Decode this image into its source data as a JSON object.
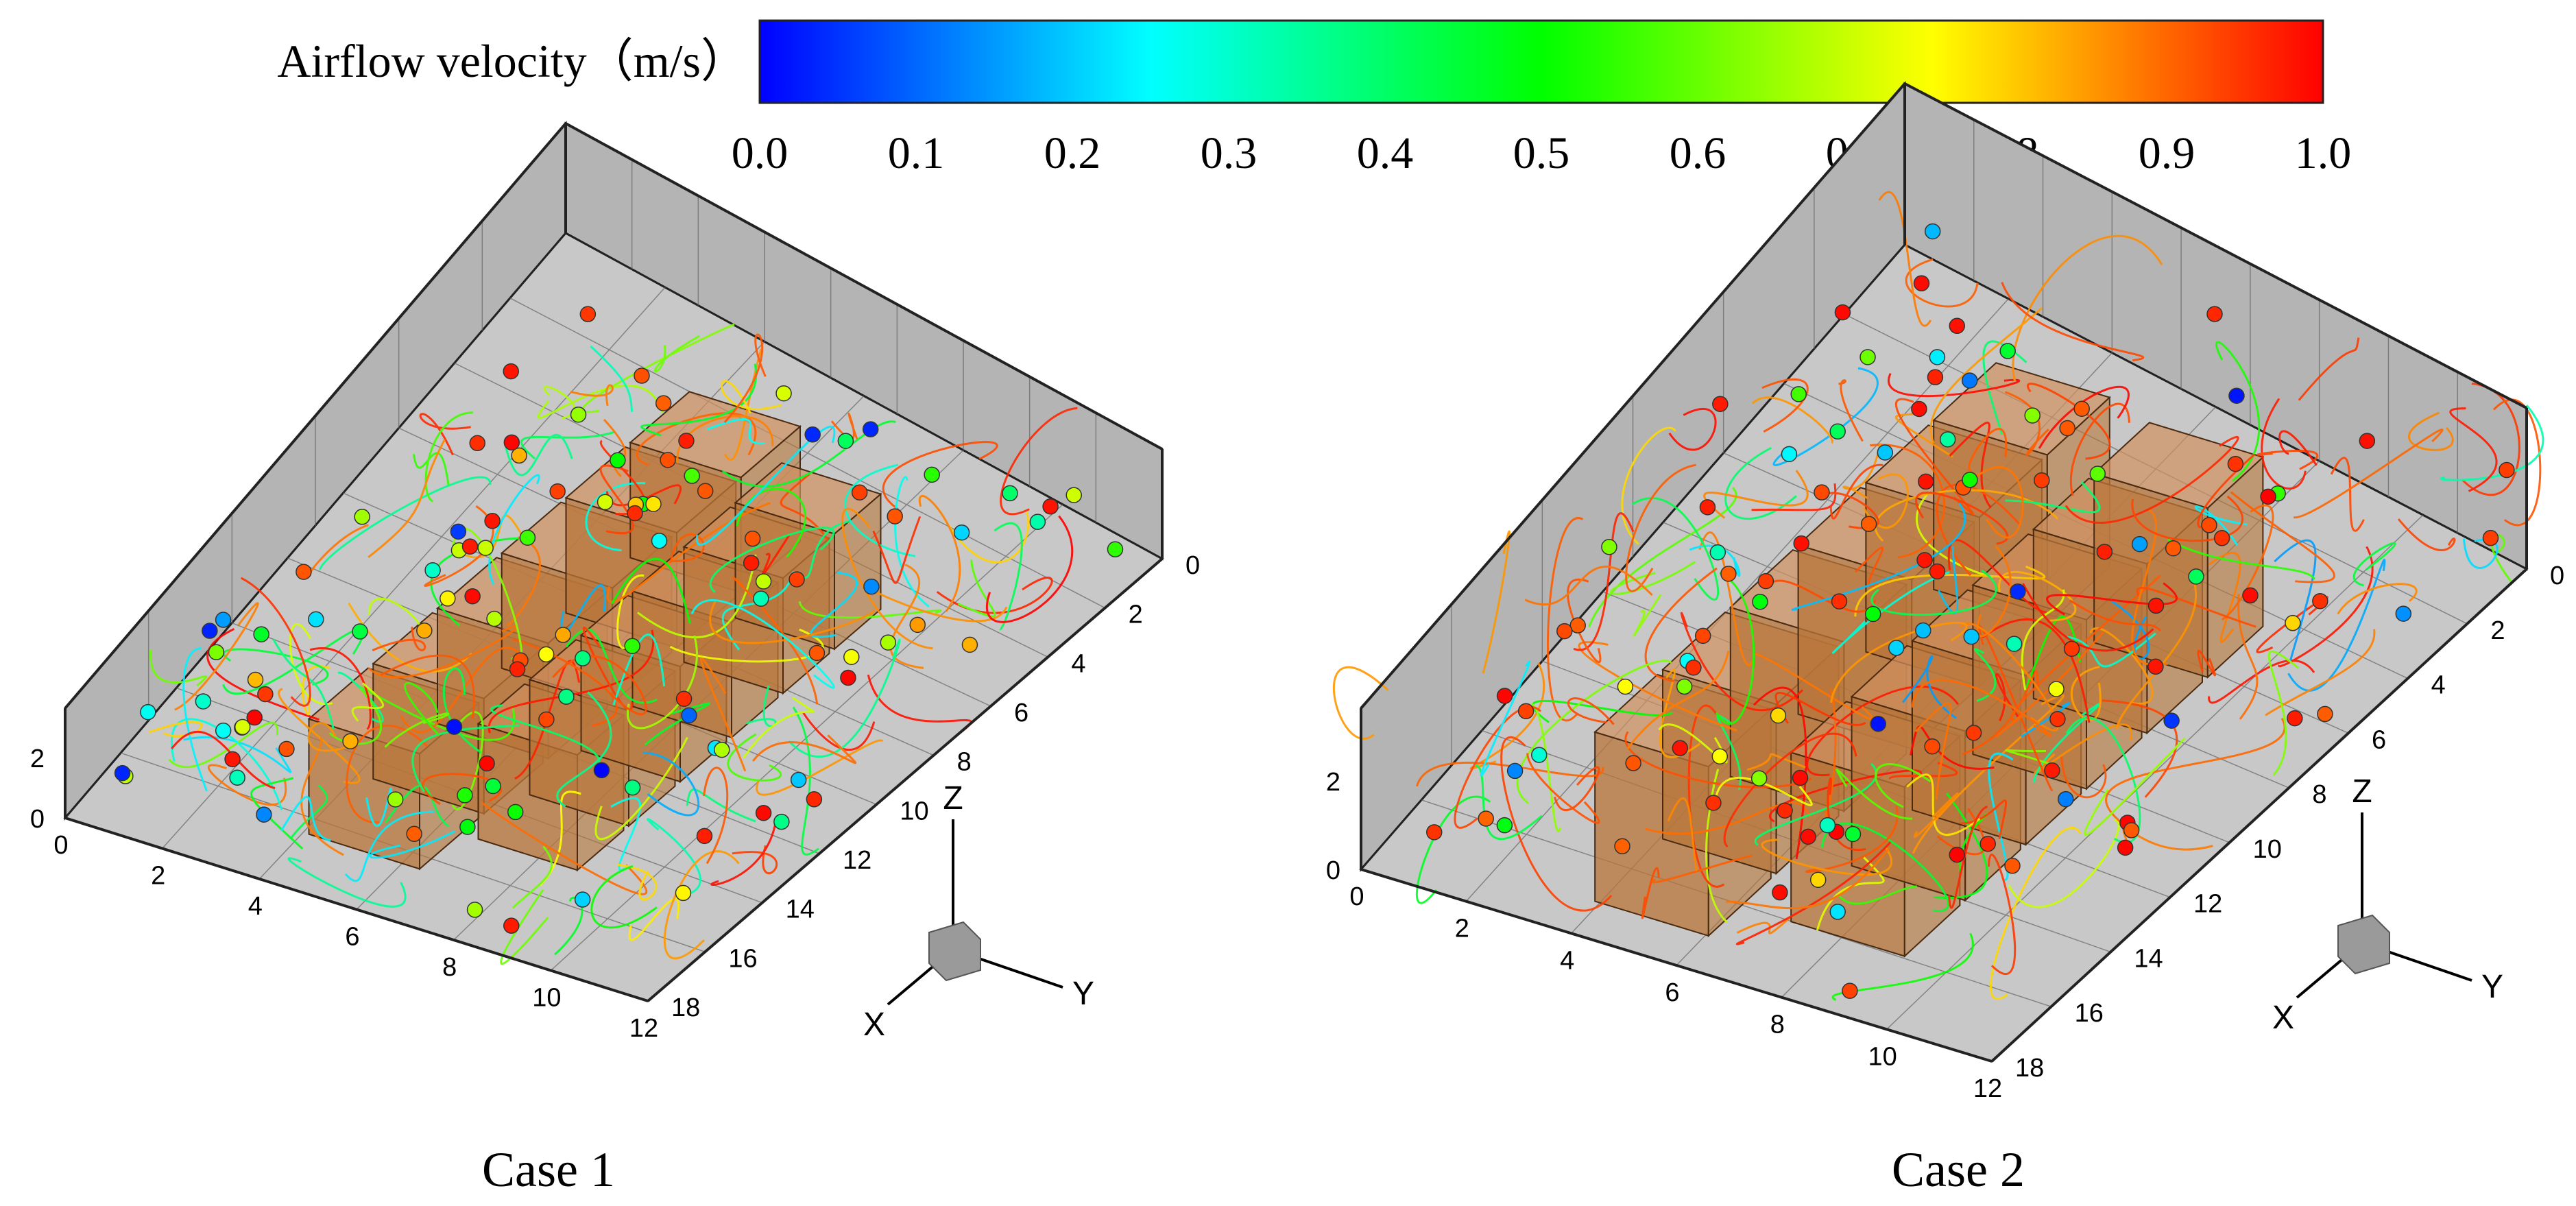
{
  "colorbar": {
    "label": "Airflow velocity（m/s）",
    "min": 0.0,
    "max": 1.0,
    "ticks": [
      "0.0",
      "0.1",
      "0.2",
      "0.3",
      "0.4",
      "0.5",
      "0.6",
      "0.7",
      "0.8",
      "0.9",
      "1.0"
    ],
    "stops": [
      "#0000ff",
      "#0080ff",
      "#00ffff",
      "#00ff80",
      "#00ff00",
      "#80ff00",
      "#ffff00",
      "#ff8000",
      "#ff0000"
    ]
  },
  "colors": {
    "room_wall": "#b4b4b4",
    "room_floor": "#c8c8c8",
    "room_edge": "#222222",
    "cabinet": "#b8763a",
    "cabinet_edge": "#4a2a10",
    "orientation_cube": "#9a9a9a"
  },
  "panels": [
    {
      "caption": "Case 1",
      "x_ticks": [
        "0",
        "2",
        "4",
        "6",
        "8",
        "10",
        "12"
      ],
      "y_ticks": [
        "0",
        "2",
        "4",
        "6",
        "8",
        "10",
        "12",
        "14",
        "16",
        "18"
      ],
      "z_ticks": [
        "0",
        "2"
      ],
      "axis_labels": {
        "x": "X",
        "y": "Y",
        "z": "Z"
      }
    },
    {
      "caption": "Case 2",
      "x_ticks": [
        "0",
        "2",
        "4",
        "6",
        "8",
        "10",
        "12"
      ],
      "y_ticks": [
        "0",
        "2",
        "4",
        "6",
        "8",
        "10",
        "12",
        "14",
        "16",
        "18"
      ],
      "z_ticks": [
        "0",
        "2"
      ],
      "axis_labels": {
        "x": "X",
        "y": "Y",
        "z": "Z"
      }
    }
  ]
}
